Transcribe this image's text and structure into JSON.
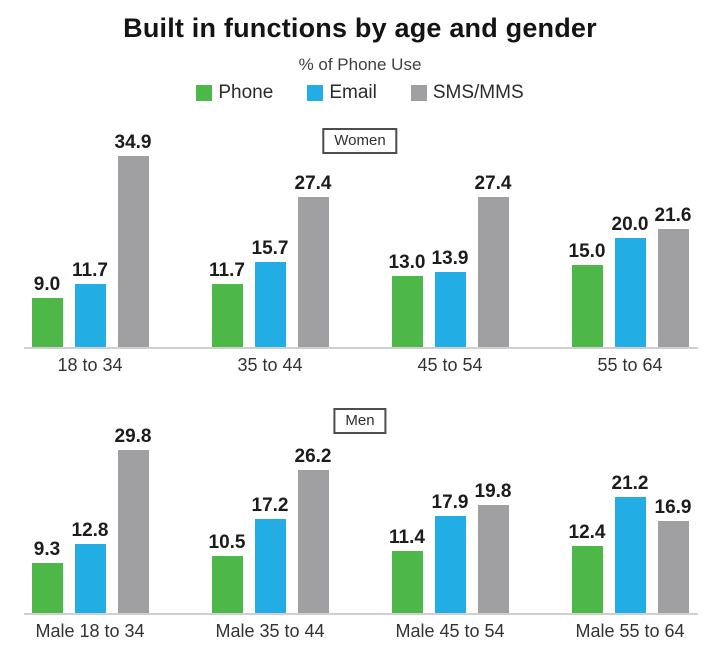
{
  "title": "Built in functions by age and gender",
  "subtitle": "% of Phone Use",
  "legend": {
    "position": "top",
    "items": [
      {
        "label": "Phone",
        "color": "#4db748"
      },
      {
        "label": "Email",
        "color": "#22ade4"
      },
      {
        "label": "SMS/MMS",
        "color": "#a0a0a2"
      }
    ]
  },
  "chart_data": [
    {
      "type": "bar",
      "panel_label": "Women",
      "categories": [
        "18 to 34",
        "35 to 44",
        "45 to 54",
        "55 to 64"
      ],
      "series": [
        {
          "name": "Phone",
          "color": "#4db748",
          "values": [
            9.0,
            11.7,
            13.0,
            15.0
          ]
        },
        {
          "name": "Email",
          "color": "#22ade4",
          "values": [
            11.7,
            15.7,
            13.9,
            20.0
          ]
        },
        {
          "name": "SMS/MMS",
          "color": "#a0a0a2",
          "values": [
            34.9,
            27.4,
            27.4,
            21.6
          ]
        }
      ],
      "value_labels": true,
      "value_label_format": "one_decimal",
      "grid": false,
      "ylim": [
        0,
        41
      ]
    },
    {
      "type": "bar",
      "panel_label": "Men",
      "categories": [
        "Male 18 to 34",
        "Male 35 to 44",
        "Male 45 to 54",
        "Male 55 to 64"
      ],
      "series": [
        {
          "name": "Phone",
          "color": "#4db748",
          "values": [
            9.3,
            10.5,
            11.4,
            12.4
          ]
        },
        {
          "name": "Email",
          "color": "#22ade4",
          "values": [
            12.8,
            17.2,
            17.9,
            21.2
          ]
        },
        {
          "name": "SMS/MMS",
          "color": "#a0a0a2",
          "values": [
            29.8,
            26.2,
            19.8,
            16.9
          ]
        }
      ],
      "value_labels": true,
      "value_label_format": "one_decimal",
      "grid": false,
      "ylim": [
        0,
        41
      ]
    }
  ]
}
